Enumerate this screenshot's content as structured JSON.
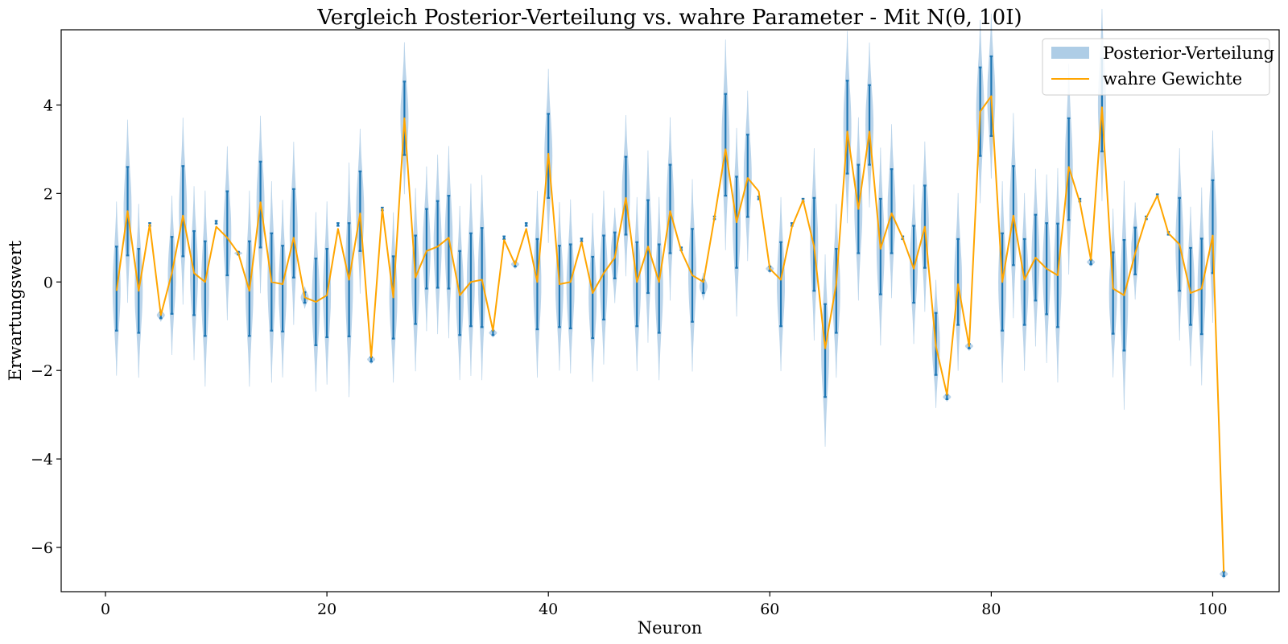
{
  "chart_data": {
    "type": "line",
    "title": "Vergleich Posterior-Verteilung vs. wahre Parameter - Mit N(θ, 10I)",
    "xlabel": "Neuron",
    "ylabel": "Erwartungswert",
    "xlim": [
      -4,
      106
    ],
    "ylim": [
      -7,
      5.7
    ],
    "xticks": [
      0,
      20,
      40,
      60,
      80,
      100
    ],
    "yticks": [
      -6,
      -4,
      -2,
      0,
      2,
      4
    ],
    "grid": false,
    "legend": {
      "position": "top-right",
      "entries": [
        "Posterior-Verteilung",
        "wahre Gewichte"
      ]
    },
    "colors": {
      "true_line": "#ffa500",
      "errorbar": "#1f77b4",
      "violin": "#aecde6"
    },
    "x": [
      1,
      2,
      3,
      4,
      5,
      6,
      7,
      8,
      9,
      10,
      11,
      12,
      13,
      14,
      15,
      16,
      17,
      18,
      19,
      20,
      21,
      22,
      23,
      24,
      25,
      26,
      27,
      28,
      29,
      30,
      31,
      32,
      33,
      34,
      35,
      36,
      37,
      38,
      39,
      40,
      41,
      42,
      43,
      44,
      45,
      46,
      47,
      48,
      49,
      50,
      51,
      52,
      53,
      54,
      55,
      56,
      57,
      58,
      59,
      60,
      61,
      62,
      63,
      64,
      65,
      66,
      67,
      68,
      69,
      70,
      71,
      72,
      73,
      74,
      75,
      76,
      77,
      78,
      79,
      80,
      81,
      82,
      83,
      84,
      85,
      86,
      87,
      88,
      89,
      90,
      91,
      92,
      93,
      94,
      95,
      96,
      97,
      98,
      99,
      100,
      101
    ],
    "series": [
      {
        "name": "wahre Gewichte",
        "values": [
          -0.2,
          1.6,
          -0.2,
          1.3,
          -0.75,
          0.2,
          1.5,
          0.2,
          0.0,
          1.25,
          1.0,
          0.65,
          -0.2,
          1.8,
          0.0,
          -0.05,
          1.0,
          -0.35,
          -0.45,
          -0.3,
          1.2,
          0.05,
          1.55,
          -1.7,
          1.65,
          -0.35,
          3.7,
          0.1,
          0.7,
          0.8,
          1.0,
          -0.3,
          0.0,
          0.05,
          -1.1,
          0.95,
          0.4,
          1.2,
          0.0,
          2.9,
          -0.05,
          0.0,
          0.9,
          -0.25,
          0.2,
          0.55,
          1.9,
          0.0,
          0.8,
          0.0,
          1.6,
          0.7,
          0.15,
          0.0,
          1.45,
          3.0,
          1.35,
          2.35,
          2.05,
          0.3,
          0.05,
          1.25,
          1.85,
          0.8,
          -1.5,
          -0.05,
          3.4,
          1.65,
          3.4,
          0.75,
          1.55,
          1.0,
          0.3,
          1.25,
          -1.45,
          -2.55,
          -0.05,
          -1.45,
          3.85,
          4.2,
          0.0,
          1.5,
          0.05,
          0.55,
          0.3,
          0.15,
          2.6,
          1.8,
          0.5,
          3.95,
          -0.15,
          -0.3,
          0.65,
          1.45,
          1.95,
          1.1,
          0.85,
          -0.25,
          -0.15,
          1.05,
          -6.55
        ]
      },
      {
        "name": "Posterior-Verteilung",
        "mean": [
          -0.15,
          1.6,
          -0.2,
          1.3,
          -0.75,
          0.15,
          1.6,
          0.2,
          -0.15,
          1.35,
          1.1,
          0.65,
          -0.15,
          1.75,
          0.0,
          -0.15,
          1.1,
          -0.35,
          -0.45,
          -0.25,
          1.3,
          0.05,
          1.6,
          -1.75,
          1.65,
          -0.35,
          3.7,
          0.05,
          0.75,
          0.85,
          0.9,
          -0.25,
          0.05,
          0.1,
          -1.15,
          1.0,
          0.4,
          1.3,
          -0.05,
          2.85,
          -0.1,
          -0.1,
          0.95,
          -0.35,
          0.1,
          0.6,
          1.95,
          -0.05,
          0.8,
          -0.15,
          1.65,
          0.75,
          0.15,
          -0.1,
          1.45,
          3.1,
          1.35,
          2.4,
          1.9,
          0.3,
          -0.05,
          1.3,
          1.85,
          0.85,
          -1.55,
          -0.2,
          3.5,
          1.65,
          3.55,
          0.8,
          1.6,
          1.0,
          0.4,
          1.25,
          -1.4,
          -2.6,
          0.0,
          -1.45,
          3.85,
          4.2,
          0.0,
          1.5,
          0.0,
          0.55,
          0.3,
          0.15,
          2.55,
          1.85,
          0.45,
          4.0,
          -0.25,
          -0.3,
          0.7,
          1.45,
          1.95,
          1.1,
          0.85,
          -0.1,
          -0.1,
          1.25,
          -6.6
        ],
        "std": [
          0.95,
          1.0,
          0.95,
          0.0,
          0.07,
          0.87,
          1.02,
          0.95,
          1.07,
          0.0,
          0.95,
          0.03,
          1.07,
          0.97,
          1.1,
          0.97,
          1.0,
          0.12,
          0.98,
          1.0,
          0.0,
          1.28,
          0.9,
          0.05,
          0.0,
          0.93,
          0.83,
          1.0,
          0.9,
          0.98,
          1.05,
          0.95,
          1.05,
          1.12,
          0.05,
          0.0,
          0.05,
          0.0,
          1.02,
          0.95,
          0.92,
          0.95,
          0.0,
          0.92,
          0.95,
          0.52,
          0.88,
          0.95,
          1.05,
          1.0,
          1.0,
          0.0,
          1.05,
          0.15,
          0.0,
          1.15,
          1.03,
          0.93,
          0.0,
          0.05,
          0.95,
          0.0,
          0.0,
          1.05,
          1.05,
          0.95,
          1.05,
          1.0,
          0.9,
          1.08,
          0.95,
          0.0,
          0.87,
          0.93,
          0.7,
          0.05,
          0.97,
          0.05,
          1.0,
          0.9,
          1.1,
          1.12,
          0.97,
          0.97,
          1.03,
          1.17,
          1.15,
          0.0,
          0.05,
          1.05,
          0.92,
          1.25,
          0.53,
          0.0,
          0.0,
          0.0,
          1.05,
          0.87,
          1.08,
          1.05,
          0.05
        ]
      }
    ]
  }
}
